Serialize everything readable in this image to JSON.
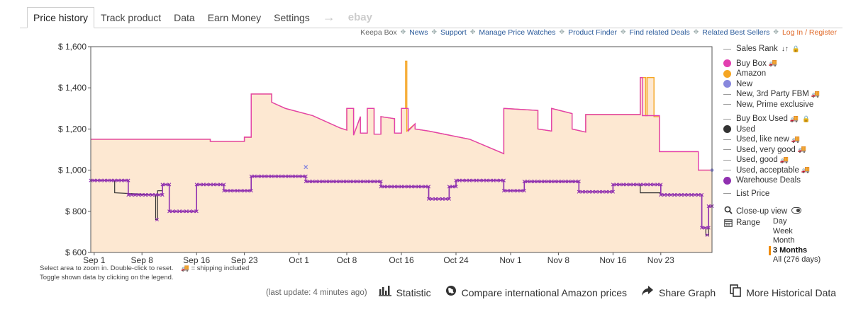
{
  "tabs": [
    {
      "label": "Price history",
      "active": true
    },
    {
      "label": "Track product"
    },
    {
      "label": "Data"
    },
    {
      "label": "Earn Money"
    },
    {
      "label": "Settings"
    }
  ],
  "tab_arrow": "→",
  "tab_ebay": "ebay",
  "links": [
    "Keepa Box",
    "News",
    "Support",
    "Manage Price Watches",
    "Product Finder",
    "Find related Deals",
    "Related Best Sellers",
    "Log In / Register"
  ],
  "hint_line1": "Select area to zoom in. Double-click to reset.",
  "hint_shipping": "🚚 = shipping included",
  "hint_line2": "Toggle shown data by clicking on the legend.",
  "legend": {
    "sales_rank": "Sales Rank",
    "buy_box": "Buy Box",
    "amazon": "Amazon",
    "new": "New",
    "new_3rd_fbm": "New, 3rd Party FBM",
    "new_prime": "New, Prime exclusive",
    "buy_box_used": "Buy Box Used",
    "used": "Used",
    "used_like_new": "Used, like new",
    "used_very_good": "Used, very good",
    "used_good": "Used, good",
    "used_acceptable": "Used, acceptable",
    "warehouse": "Warehouse Deals",
    "list_price": "List Price",
    "truck": "🚚",
    "lock": "🔒",
    "rank_icon": "↓↑"
  },
  "closeup_label": "Close-up view",
  "range_label": "Range",
  "range_options": [
    "Day",
    "Week",
    "Month",
    "3 Months",
    "All (276 days)"
  ],
  "range_selected": "3 Months",
  "last_update": "(last update: 4 minutes ago)",
  "actions": [
    {
      "label": "Statistic",
      "icon": "bar-chart-icon"
    },
    {
      "label": "Compare international Amazon prices",
      "icon": "globe-icon"
    },
    {
      "label": "Share Graph",
      "icon": "share-icon"
    },
    {
      "label": "More Historical Data",
      "icon": "copy-icon"
    }
  ],
  "colors": {
    "amazon_fill": "#fde8d2",
    "amazon": "#f5a623",
    "buy_box": "#e23fb0",
    "new": "#8888dd",
    "used": "#333333",
    "warehouse": "#9030b0"
  },
  "chart_data": {
    "type": "line",
    "xlabel": "",
    "ylabel": "",
    "ylim": [
      600,
      1600
    ],
    "xlim": [
      0.5,
      91.5
    ],
    "y_ticks": [
      600,
      800,
      1000,
      1200,
      1400,
      1600
    ],
    "y_tick_labels": [
      "$ 600",
      "$ 800",
      "$ 1,000",
      "$ 1,200",
      "$ 1,400",
      "$ 1,600"
    ],
    "x_ticks": [
      1,
      8,
      16,
      23,
      31,
      38,
      46,
      54,
      62,
      69,
      77,
      84
    ],
    "x_tick_labels": [
      "Sep 1",
      "Sep 8",
      "Sep 16",
      "Sep 23",
      "Oct 1",
      "Oct 8",
      "Oct 16",
      "Oct 24",
      "Nov 1",
      "Nov 8",
      "Nov 16",
      "Nov 23"
    ],
    "grid": false,
    "legend": "right",
    "series": [
      {
        "name": "Amazon",
        "points": [
          [
            0.5,
            1150
          ],
          [
            18,
            1150
          ],
          [
            18,
            1140
          ],
          [
            23,
            1140
          ],
          [
            23,
            1160
          ],
          [
            24,
            1160
          ],
          [
            24,
            1370
          ],
          [
            27,
            1370
          ],
          [
            27,
            1330
          ],
          [
            29,
            1300
          ],
          [
            33,
            1265
          ],
          [
            37,
            1205
          ],
          [
            38,
            1195
          ],
          [
            38,
            1300
          ],
          [
            39,
            1300
          ],
          [
            39,
            1170
          ],
          [
            40,
            1260
          ],
          [
            40,
            1180
          ],
          [
            41,
            1180
          ],
          [
            41,
            1300
          ],
          [
            42,
            1300
          ],
          [
            42,
            1175
          ],
          [
            43,
            1175
          ],
          [
            43,
            1260
          ],
          [
            45,
            1250
          ],
          [
            45,
            1180
          ],
          [
            46,
            1180
          ],
          [
            46,
            1300
          ],
          [
            46.6,
            1300
          ],
          [
            46.6,
            1530
          ],
          [
            46.8,
            1530
          ],
          [
            46.8,
            1190
          ],
          [
            48,
            1225
          ],
          [
            48,
            1200
          ],
          [
            50,
            1190
          ],
          [
            56,
            1150
          ],
          [
            61,
            1080
          ],
          [
            61,
            1300
          ],
          [
            66,
            1290
          ],
          [
            66,
            1200
          ],
          [
            68,
            1190
          ],
          [
            68,
            1300
          ],
          [
            71,
            1275
          ],
          [
            71,
            1200
          ],
          [
            73,
            1185
          ],
          [
            73,
            1270
          ],
          [
            81,
            1270
          ],
          [
            81,
            1450
          ],
          [
            81.8,
            1450
          ],
          [
            81.8,
            1265
          ],
          [
            82,
            1265
          ],
          [
            82,
            1450
          ],
          [
            83,
            1450
          ],
          [
            83,
            1260
          ],
          [
            83.8,
            1260
          ],
          [
            83.8,
            1090
          ],
          [
            89.5,
            1090
          ],
          [
            89.5,
            1000
          ],
          [
            91.5,
            1000
          ]
        ]
      },
      {
        "name": "Buy Box",
        "points": [
          [
            0.5,
            1150
          ],
          [
            18,
            1150
          ],
          [
            18,
            1140
          ],
          [
            23,
            1140
          ],
          [
            23,
            1160
          ],
          [
            24,
            1160
          ],
          [
            24,
            1370
          ],
          [
            27,
            1370
          ],
          [
            27,
            1330
          ],
          [
            29,
            1300
          ],
          [
            33,
            1265
          ],
          [
            37,
            1205
          ],
          [
            38,
            1195
          ],
          [
            38,
            1300
          ],
          [
            39,
            1300
          ],
          [
            39,
            1170
          ],
          [
            40,
            1260
          ],
          [
            40,
            1180
          ],
          [
            41,
            1180
          ],
          [
            41,
            1300
          ],
          [
            42,
            1300
          ],
          [
            42,
            1175
          ],
          [
            43,
            1175
          ],
          [
            43,
            1260
          ],
          [
            45,
            1250
          ],
          [
            45,
            1180
          ],
          [
            46,
            1180
          ],
          [
            46,
            1300
          ],
          [
            47,
            1300
          ],
          [
            47,
            1190
          ],
          [
            48,
            1225
          ],
          [
            48,
            1200
          ],
          [
            50,
            1190
          ],
          [
            56,
            1150
          ],
          [
            61,
            1080
          ],
          [
            61,
            1300
          ],
          [
            66,
            1290
          ],
          [
            66,
            1200
          ],
          [
            68,
            1190
          ],
          [
            68,
            1300
          ],
          [
            71,
            1275
          ],
          [
            71,
            1200
          ],
          [
            73,
            1185
          ],
          [
            73,
            1270
          ],
          [
            81,
            1270
          ],
          [
            81,
            1450
          ],
          [
            81.3,
            1450
          ],
          [
            81.3,
            1265
          ],
          [
            83.8,
            1265
          ],
          [
            83.8,
            1090
          ],
          [
            89.5,
            1090
          ],
          [
            89.5,
            1000
          ],
          [
            91.5,
            1000
          ]
        ]
      },
      {
        "name": "Used",
        "points": [
          [
            0.5,
            950
          ],
          [
            4,
            950
          ],
          [
            4,
            890
          ],
          [
            10,
            880
          ],
          [
            10,
            760
          ],
          [
            10.3,
            760
          ],
          [
            10.3,
            900
          ],
          [
            11,
            900
          ],
          [
            11,
            930
          ],
          [
            12,
            930
          ],
          [
            12,
            800
          ],
          [
            16,
            800
          ],
          [
            16,
            930
          ],
          [
            20,
            930
          ],
          [
            20,
            900
          ],
          [
            24,
            900
          ],
          [
            24,
            970
          ],
          [
            32,
            970
          ],
          [
            32,
            945
          ],
          [
            43,
            945
          ],
          [
            43,
            920
          ],
          [
            50,
            920
          ],
          [
            50,
            860
          ],
          [
            53,
            860
          ],
          [
            53,
            920
          ],
          [
            54,
            920
          ],
          [
            54,
            950
          ],
          [
            61,
            950
          ],
          [
            61,
            900
          ],
          [
            64,
            900
          ],
          [
            64,
            945
          ],
          [
            72,
            945
          ],
          [
            72,
            895
          ],
          [
            77,
            895
          ],
          [
            77,
            930
          ],
          [
            81,
            930
          ],
          [
            81,
            890
          ],
          [
            84,
            890
          ],
          [
            84,
            880
          ],
          [
            90,
            880
          ],
          [
            90,
            720
          ],
          [
            90.6,
            720
          ],
          [
            90.6,
            685
          ],
          [
            91,
            685
          ],
          [
            91,
            825
          ],
          [
            91.5,
            825
          ]
        ]
      },
      {
        "name": "Warehouse Deals",
        "points": [
          [
            0.5,
            950
          ],
          [
            6,
            950
          ],
          [
            6,
            880
          ],
          [
            11,
            880
          ],
          [
            11,
            930
          ],
          [
            12,
            930
          ],
          [
            12,
            800
          ],
          [
            16,
            800
          ],
          [
            16,
            930
          ],
          [
            20,
            930
          ],
          [
            20,
            900
          ],
          [
            24,
            900
          ],
          [
            24,
            970
          ],
          [
            32,
            970
          ],
          [
            32,
            945
          ],
          [
            43,
            945
          ],
          [
            43,
            920
          ],
          [
            50,
            920
          ],
          [
            50,
            860
          ],
          [
            53,
            860
          ],
          [
            53,
            920
          ],
          [
            54,
            920
          ],
          [
            54,
            950
          ],
          [
            61,
            950
          ],
          [
            61,
            900
          ],
          [
            64,
            900
          ],
          [
            64,
            945
          ],
          [
            72,
            945
          ],
          [
            72,
            895
          ],
          [
            77,
            895
          ],
          [
            77,
            930
          ],
          [
            84,
            930
          ],
          [
            84,
            880
          ],
          [
            90,
            880
          ],
          [
            90,
            720
          ],
          [
            91,
            720
          ],
          [
            91,
            825
          ],
          [
            91.5,
            825
          ]
        ]
      },
      {
        "name": "New",
        "points": [
          [
            32,
            1015
          ],
          [
            91.5,
            1000
          ]
        ]
      }
    ]
  }
}
